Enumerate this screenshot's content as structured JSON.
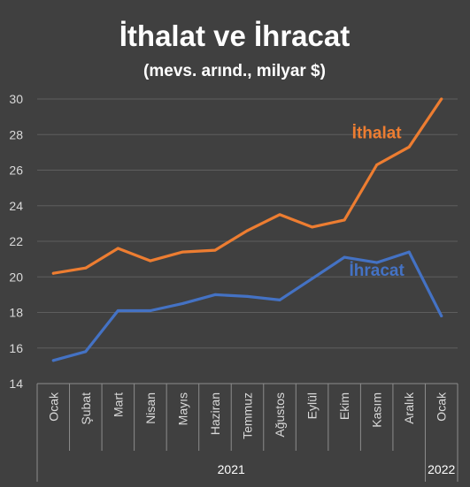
{
  "chart_data": {
    "type": "line",
    "title": "İthalat ve İhracat",
    "subtitle": "(mevs. arınd., milyar $)",
    "categories": [
      "Ocak",
      "Şubat",
      "Mart",
      "Nisan",
      "Mayıs",
      "Haziran",
      "Temmuz",
      "Ağustos",
      "Eylül",
      "Ekim",
      "Kasım",
      "Aralık",
      "Ocak"
    ],
    "year_groups": [
      {
        "label": "2021",
        "start": 0,
        "end": 11
      },
      {
        "label": "2022",
        "start": 12,
        "end": 12
      }
    ],
    "ylim": [
      14,
      30
    ],
    "yticks": [
      14,
      16,
      18,
      20,
      22,
      24,
      26,
      28,
      30
    ],
    "grid": true,
    "series": [
      {
        "name": "İthalat",
        "color": "#ED7D31",
        "values": [
          20.2,
          20.5,
          21.6,
          20.9,
          21.4,
          21.5,
          22.6,
          23.5,
          22.8,
          23.2,
          26.3,
          27.3,
          30.0
        ]
      },
      {
        "name": "İhracat",
        "color": "#4472C4",
        "values": [
          15.3,
          15.8,
          18.1,
          18.1,
          18.5,
          19.0,
          18.9,
          18.7,
          19.9,
          21.1,
          20.8,
          21.4,
          17.8
        ]
      }
    ]
  },
  "colors": {
    "background": "#404040",
    "grid": "#5E5E5E",
    "axis": "#8C8C8C",
    "text": "#FFFFFF",
    "tick_text": "#D9D9D9"
  }
}
